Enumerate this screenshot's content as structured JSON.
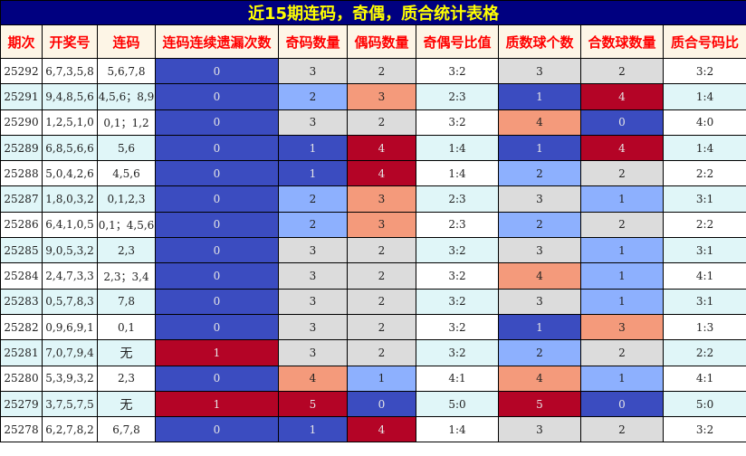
{
  "title": "近15期连码，奇偶，质合统计表格",
  "headers": [
    "期次",
    "开奖号",
    "连码",
    "连码连续遗漏次数",
    "奇码数量",
    "偶码数量",
    "奇偶号比值",
    "质数球个数",
    "合数球数量",
    "质合号码比"
  ],
  "palette": {
    "dark_blue": "#3b4cc0",
    "light_blue": "#8db0fe",
    "gray": "#dcdcdc",
    "salmon": "#f49a7b",
    "red": "#b40426"
  },
  "color_scales": {
    "miss": {
      "0": "dark_blue",
      "1": "red"
    },
    "odd": {
      "1": "dark_blue",
      "2": "light_blue",
      "3": "gray",
      "4": "salmon",
      "5": "red"
    },
    "even": {
      "0": "dark_blue",
      "1": "light_blue",
      "2": "gray",
      "3": "salmon",
      "4": "red"
    },
    "prime": {
      "1": "dark_blue",
      "2": "light_blue",
      "3": "gray",
      "4": "salmon",
      "5": "red"
    },
    "composite": {
      "0": "dark_blue",
      "1": "light_blue",
      "2": "gray",
      "3": "salmon",
      "4": "red"
    }
  },
  "rows": [
    {
      "issue": "25292",
      "numbers": "6,7,3,5,8",
      "consecutive": "5,6,7,8",
      "miss": "0",
      "odd": "3",
      "even": "2",
      "oe_ratio": "3:2",
      "prime": "3",
      "composite": "2",
      "pc_ratio": "3:2"
    },
    {
      "issue": "25291",
      "numbers": "9,4,8,5,6",
      "consecutive": "4,5,6；8,9",
      "miss": "0",
      "odd": "2",
      "even": "3",
      "oe_ratio": "2:3",
      "prime": "1",
      "composite": "4",
      "pc_ratio": "1:4"
    },
    {
      "issue": "25290",
      "numbers": "1,2,5,1,0",
      "consecutive": "0,1；1,2",
      "miss": "0",
      "odd": "3",
      "even": "2",
      "oe_ratio": "3:2",
      "prime": "4",
      "composite": "0",
      "pc_ratio": "4:0"
    },
    {
      "issue": "25289",
      "numbers": "6,8,5,6,6",
      "consecutive": "5,6",
      "miss": "0",
      "odd": "1",
      "even": "4",
      "oe_ratio": "1:4",
      "prime": "1",
      "composite": "4",
      "pc_ratio": "1:4"
    },
    {
      "issue": "25288",
      "numbers": "5,0,4,2,6",
      "consecutive": "4,5,6",
      "miss": "0",
      "odd": "1",
      "even": "4",
      "oe_ratio": "1:4",
      "prime": "2",
      "composite": "2",
      "pc_ratio": "2:2"
    },
    {
      "issue": "25287",
      "numbers": "1,8,0,3,2",
      "consecutive": "0,1,2,3",
      "miss": "0",
      "odd": "2",
      "even": "3",
      "oe_ratio": "2:3",
      "prime": "3",
      "composite": "1",
      "pc_ratio": "3:1"
    },
    {
      "issue": "25286",
      "numbers": "6,4,1,0,5",
      "consecutive": "0,1；4,5,6",
      "miss": "0",
      "odd": "2",
      "even": "3",
      "oe_ratio": "2:3",
      "prime": "2",
      "composite": "2",
      "pc_ratio": "2:2"
    },
    {
      "issue": "25285",
      "numbers": "9,0,5,3,2",
      "consecutive": "2,3",
      "miss": "0",
      "odd": "3",
      "even": "2",
      "oe_ratio": "3:2",
      "prime": "3",
      "composite": "1",
      "pc_ratio": "3:1"
    },
    {
      "issue": "25284",
      "numbers": "2,4,7,3,3",
      "consecutive": "2,3；3,4",
      "miss": "0",
      "odd": "3",
      "even": "2",
      "oe_ratio": "3:2",
      "prime": "4",
      "composite": "1",
      "pc_ratio": "4:1"
    },
    {
      "issue": "25283",
      "numbers": "0,5,7,8,3",
      "consecutive": "7,8",
      "miss": "0",
      "odd": "3",
      "even": "2",
      "oe_ratio": "3:2",
      "prime": "3",
      "composite": "1",
      "pc_ratio": "3:1"
    },
    {
      "issue": "25282",
      "numbers": "0,9,6,9,1",
      "consecutive": "0,1",
      "miss": "0",
      "odd": "3",
      "even": "2",
      "oe_ratio": "3:2",
      "prime": "1",
      "composite": "3",
      "pc_ratio": "1:3"
    },
    {
      "issue": "25281",
      "numbers": "7,0,7,9,4",
      "consecutive": "无",
      "miss": "1",
      "odd": "3",
      "even": "2",
      "oe_ratio": "3:2",
      "prime": "2",
      "composite": "2",
      "pc_ratio": "2:2"
    },
    {
      "issue": "25280",
      "numbers": "5,3,9,3,2",
      "consecutive": "2,3",
      "miss": "0",
      "odd": "4",
      "even": "1",
      "oe_ratio": "4:1",
      "prime": "4",
      "composite": "1",
      "pc_ratio": "4:1"
    },
    {
      "issue": "25279",
      "numbers": "3,7,5,7,5",
      "consecutive": "无",
      "miss": "1",
      "odd": "5",
      "even": "0",
      "oe_ratio": "5:0",
      "prime": "5",
      "composite": "0",
      "pc_ratio": "5:0"
    },
    {
      "issue": "25278",
      "numbers": "6,2,7,8,2",
      "consecutive": "6,7,8",
      "miss": "0",
      "odd": "1",
      "even": "4",
      "oe_ratio": "1:4",
      "prime": "3",
      "composite": "2",
      "pc_ratio": "3:2"
    }
  ]
}
